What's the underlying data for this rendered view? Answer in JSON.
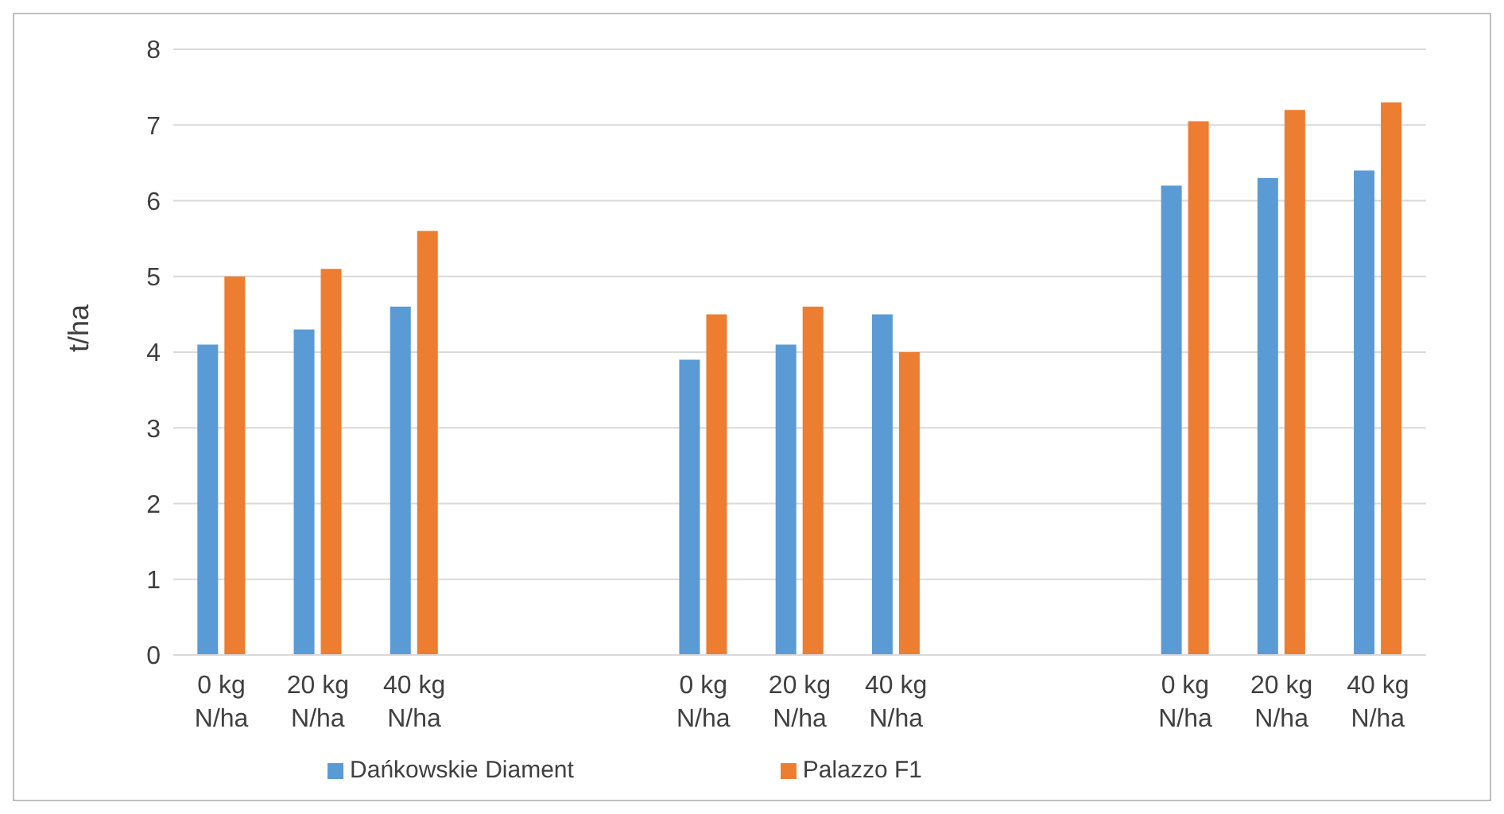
{
  "chart_data": {
    "type": "bar",
    "ylabel": "t/ha",
    "categories": [
      "0 kg N/ha",
      "20 kg N/ha",
      "40 kg N/ha",
      null,
      null,
      "0 kg N/ha",
      "20 kg N/ha",
      "40 kg N/ha",
      null,
      null,
      "0 kg N/ha",
      "20 kg N/ha",
      "40 kg N/ha"
    ],
    "series": [
      {
        "name": "Dańkowskie Diament",
        "color": "#5b9bd5",
        "values": [
          4.1,
          4.3,
          4.6,
          null,
          null,
          3.9,
          4.1,
          4.5,
          null,
          null,
          6.2,
          6.3,
          6.4
        ]
      },
      {
        "name": "Palazzo F1",
        "color": "#ed7d31",
        "values": [
          5.0,
          5.1,
          5.6,
          null,
          null,
          4.5,
          4.6,
          4.0,
          null,
          null,
          7.05,
          7.2,
          7.3
        ]
      }
    ],
    "ylim": [
      0,
      8
    ],
    "yticks": [
      0,
      1,
      2,
      3,
      4,
      5,
      6,
      7,
      8
    ],
    "grid": "y",
    "legend": "bottom"
  }
}
